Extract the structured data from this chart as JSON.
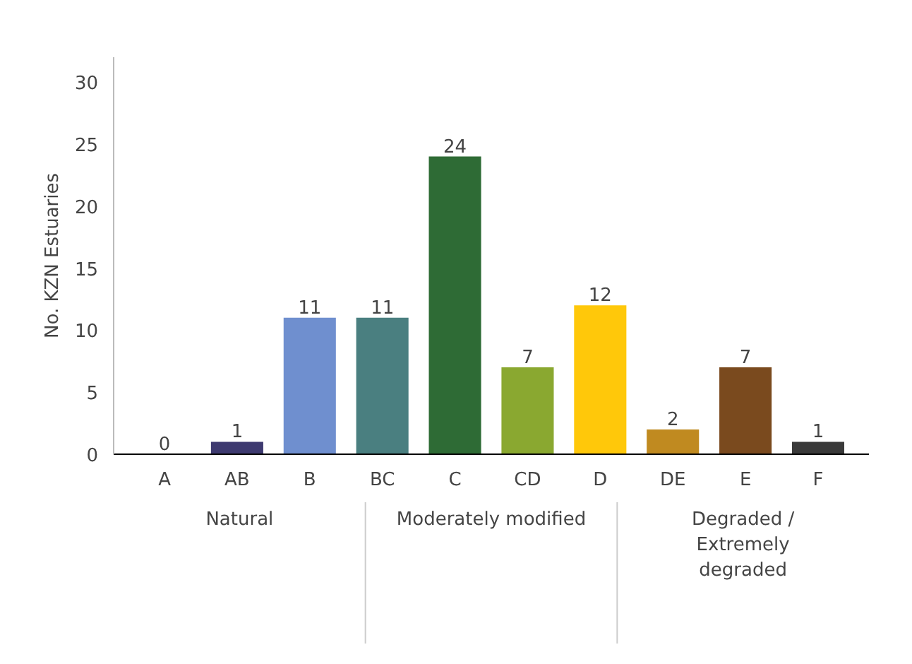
{
  "chart_data": {
    "type": "bar",
    "ylabel": "No. KZN Estuaries",
    "categories": [
      "A",
      "AB",
      "B",
      "BC",
      "C",
      "CD",
      "D",
      "DE",
      "E",
      "F"
    ],
    "values": [
      0,
      1,
      11,
      11,
      24,
      7,
      12,
      2,
      7,
      1
    ],
    "colors": [
      "#6f8fcf",
      "#3e3a70",
      "#6f8fcf",
      "#4a7f80",
      "#2e6b35",
      "#8aa830",
      "#ffc80a",
      "#c08a20",
      "#7a4a1e",
      "#3a3a3a"
    ],
    "ylim": [
      0,
      32
    ],
    "yticks": [
      0,
      5,
      10,
      15,
      20,
      25,
      30
    ],
    "grid": false,
    "data_labels": true,
    "annotations": [
      "Natural",
      "Moderately modified",
      "Degraded /\nExtremely\ndegraded"
    ]
  }
}
